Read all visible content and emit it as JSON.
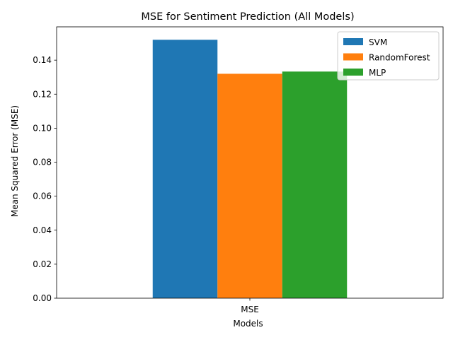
{
  "chart_data": {
    "type": "bar",
    "title": "MSE for Sentiment Prediction (All Models)",
    "xlabel": "Models",
    "ylabel": "Mean Squared Error (MSE)",
    "categories": [
      "MSE"
    ],
    "series": [
      {
        "name": "SVM",
        "values": [
          0.152
        ],
        "color": "#1f77b4"
      },
      {
        "name": "RandomForest",
        "values": [
          0.132
        ],
        "color": "#ff7f0e"
      },
      {
        "name": "MLP",
        "values": [
          0.1333
        ],
        "color": "#2ca02c"
      }
    ],
    "ylim": [
      0,
      0.1596
    ],
    "yticks": [
      0.0,
      0.02,
      0.04,
      0.06,
      0.08,
      0.1,
      0.12,
      0.14
    ],
    "ytick_labels": [
      "0.00",
      "0.02",
      "0.04",
      "0.06",
      "0.08",
      "0.10",
      "0.12",
      "0.14"
    ],
    "grid": false,
    "legend_position": "top-right"
  }
}
